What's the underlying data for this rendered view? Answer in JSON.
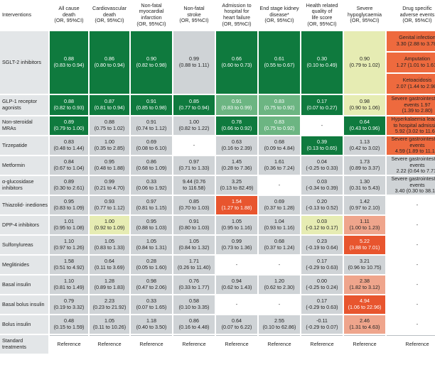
{
  "header": {
    "interventions": "Interventions",
    "cols": [
      {
        "l1": "All cause",
        "l2": "death",
        "l3": "(OR, 95%CI)"
      },
      {
        "l1": "Cardiovascular",
        "l2": "death",
        "l3": "(OR, 95%CI)"
      },
      {
        "l1": "Non-fatal myocardial",
        "l2": "infarction",
        "l3": "(OR, 95%CI)"
      },
      {
        "l1": "Non-fatal",
        "l2": "stroke",
        "l3": "(OR, 95%CI)"
      },
      {
        "l1": "Admission to hospital for",
        "l2": "heart failure",
        "l3": "(OR, 95%CI)"
      },
      {
        "l1": "End stage kidney",
        "l2": "disease*",
        "l3": "(OR, 95%CI)"
      },
      {
        "l1": "Health related quality of",
        "l2": "life score",
        "l3": "(OR, 95%CI)"
      },
      {
        "l1": "Severe",
        "l2": "hypoglycaemia",
        "l3": "(OR, 95%CI)"
      },
      {
        "l1": "Drug specific",
        "l2": "adverse events",
        "l3": "(OR, 95%CI)"
      }
    ]
  },
  "rows": {
    "sglt2": {
      "label": "SGLT-2 inhibitors",
      "acd": [
        "0.88",
        "(0.83 to 0.94)"
      ],
      "cvd": [
        "0.86",
        "(0.80 to 0.94)"
      ],
      "mi": [
        "0.90",
        "(0.82 to 0.98)"
      ],
      "st": [
        "0.99",
        "(0.88 to 1.11)"
      ],
      "hf": [
        "0.66",
        "(0.60 to 0.73)"
      ],
      "kd": [
        "0.61",
        "(0.55 to 0.67)"
      ],
      "ql": [
        "0.30",
        "(0.10 to 0.49)"
      ],
      "hy": [
        "0.90",
        "(0.79 to 1.02)"
      ],
      "ae": [
        [
          "Genital infection",
          "3.30 (2.88 to 3.78)"
        ],
        [
          "Amputation",
          "1.27 (1.01 to 1.61)"
        ],
        [
          "Ketoacidosis",
          "2.07 (1.44 to 2.98)"
        ]
      ]
    },
    "glp1": {
      "label": "GLP-1 receptor agonists",
      "acd": [
        "0.88",
        "(0.82 to 0.93)"
      ],
      "cvd": [
        "0.87",
        "(0.81 to 0.94)"
      ],
      "mi": [
        "0.91",
        "(0.85 to 0.98)"
      ],
      "st": [
        "0.85",
        "(0.77 to 0.94)"
      ],
      "hf": [
        "0.91",
        "(0.83 to 0.99)"
      ],
      "kd": [
        "0.83",
        "(0.75 to 0.92)"
      ],
      "ql": [
        "0.17",
        "(0.07 to 0.27)"
      ],
      "hy": [
        "0.98",
        "(0.90 to 1.06)"
      ],
      "ae": [
        "Severe gastrointestinal events 1.97",
        "(1.39 to 2.80)"
      ]
    },
    "nsmra": {
      "label": "Non-steroidal MRAs",
      "acd": [
        "0.89",
        "(0.79 to 1.00)"
      ],
      "cvd": [
        "0.88",
        "(0.75 to 1.02)"
      ],
      "mi": [
        "0.91",
        "(0.74 to 1.12)"
      ],
      "st": [
        "1.00",
        "(0.82 to 1.22)"
      ],
      "hf": [
        "0.78",
        "(0.66 to 0.92)"
      ],
      "kd": [
        "0.83",
        "(0.75 to 0.92)"
      ],
      "ql": "-",
      "hy": [
        "0.64",
        "(0.43 to 0.96)"
      ],
      "ae": [
        "Hyperkalaemia leading",
        "to hospital admission",
        "5.92 (3.02 to 11.62)"
      ]
    },
    "tirz": {
      "label": "Tirzepatide",
      "acd": [
        "0.83",
        "(0.48 to 1.44)"
      ],
      "cvd": [
        "1.00",
        "(0.35 to 2.85)"
      ],
      "mi": [
        "0.69",
        "(0.08 to 6.10)"
      ],
      "st": "-",
      "hf": [
        "0.63",
        "(0.16 to 2.39)"
      ],
      "kd": [
        "0.68",
        "(0.09 to 4.84)"
      ],
      "ql": [
        "0.39",
        "(0.13 to 0.65)"
      ],
      "hy": [
        "1.13",
        "(0.42 to 3.02)"
      ],
      "ae": [
        "Severe gastrointestinal",
        "events",
        "4.59 (1.89 to 11.14)"
      ]
    },
    "metf": {
      "label": "Metformin",
      "acd": [
        "0.84",
        "(0.67 to 1.04)"
      ],
      "cvd": [
        "0.95",
        "(0.48 to 1.88)"
      ],
      "mi": [
        "0.86",
        "(0.68 to 1.09)"
      ],
      "st": [
        "0.97",
        "(0.71 to 1.33)"
      ],
      "hf": [
        "1.45",
        "(0.28 to 7.36)"
      ],
      "kd": [
        "1.61",
        "(0.36 to 7.24)"
      ],
      "ql": [
        "0.04",
        "(-0.25 to 0.33)"
      ],
      "hy": [
        "1.73",
        "(0.89 to 3.37)"
      ],
      "ae": [
        "Severe gastrointestinal",
        "events",
        "2.22 (0.64 to 7.71)"
      ]
    },
    "agi": {
      "label": "α-glucosidase inhibitors",
      "acd": [
        "0.89",
        "(0.30 to 2.61)"
      ],
      "cvd": [
        "0.99",
        "(0.21 to 4.70)"
      ],
      "mi": [
        "0.33",
        "(0.06 to 1.92)"
      ],
      "st": [
        "9.44 (0.76",
        "to 116.58)"
      ],
      "hf": [
        "3.25",
        "(0.13 to 82.49)"
      ],
      "kd": "-",
      "ql": [
        "0.03",
        "(-0.34 to 0.39)"
      ],
      "hy": [
        "1.30",
        "(0.31 to 5.43)"
      ],
      "ae": [
        "Severe gastrointestinal",
        "events",
        "3.40 (0.30 to 38.15)"
      ]
    },
    "tzd": {
      "label": "Thiazolid- inediones",
      "acd": [
        "0.95",
        "(0.83 to 1.09)"
      ],
      "cvd": [
        "0.93",
        "(0.77 to 1.12)"
      ],
      "mi": [
        "0.97",
        "(0.81 to 1.15)"
      ],
      "st": [
        "0.85",
        "(0.70 to 1.03)"
      ],
      "hf": [
        "1.54",
        "(1.27 to 1.88)"
      ],
      "kd": [
        "0.69",
        "(0.37 to 1.28)"
      ],
      "ql": [
        "0.20",
        "(-0.13 to 0.52)"
      ],
      "hy": [
        "1.42",
        "(0.97 to 2.10)"
      ],
      "ae": "-"
    },
    "dpp4": {
      "label": "DPP-4 inhibitors",
      "acd": [
        "1.01",
        "(0.95 to 1.08)"
      ],
      "cvd": [
        "1.00",
        "(0.92 to 1.09)"
      ],
      "mi": [
        "0.95",
        "(0.88 to 1.03)"
      ],
      "st": [
        "0.91",
        "(0.80 to 1.03)"
      ],
      "hf": [
        "1.05",
        "(0.95 to 1.16)"
      ],
      "kd": [
        "1.04",
        "(0.93 to 1.16)"
      ],
      "ql": [
        "0.03",
        "(-0.12 to 0.17)"
      ],
      "hy": [
        "1.11",
        "(1.00 to 1.23)"
      ],
      "ae": "-"
    },
    "sulf": {
      "label": "Sulfonylureas",
      "acd": [
        "1.10",
        "(0.97 to 1.26)"
      ],
      "cvd": [
        "1.05",
        "(0.83 to 1.33)"
      ],
      "mi": [
        "1.05",
        "(0.84 to 1.31)"
      ],
      "st": [
        "1.05",
        "(0.84 to 1.32)"
      ],
      "hf": [
        "0.99",
        "(0.73 to 1.36)"
      ],
      "kd": [
        "0.68",
        "(0.37 to 1.24)"
      ],
      "ql": [
        "0.23",
        "(-0.19 to 0.64)"
      ],
      "hy": [
        "5.22",
        "(3.88 to 7.01)"
      ],
      "ae": "-"
    },
    "megl": {
      "label": "Meglitinides",
      "acd": [
        "1.58",
        "(0.51 to 4.92)"
      ],
      "cvd": [
        "0.64",
        "(0.11 to 3.69)"
      ],
      "mi": [
        "0.28",
        "(0.05 to 1.60)"
      ],
      "st": [
        "1.71",
        "(0.26 to 11.40)"
      ],
      "hf": "-",
      "kd": "-",
      "ql": [
        "0.17",
        "(-0.29 to 0.63)"
      ],
      "hy": [
        "3.21",
        "(0.96 to 10.75)"
      ],
      "ae": "-"
    },
    "basal": {
      "label": "Basal insulin",
      "acd": [
        "1.10",
        "(0.81 to 1.49)"
      ],
      "cvd": [
        "1.28",
        "(0.89 to 1.83)"
      ],
      "mi": [
        "0.98",
        "(0.47 to 2.06)"
      ],
      "st": [
        "0.76",
        "(0.33 to 1.77)"
      ],
      "hf": [
        "0.94",
        "(0.62 to 1.43)"
      ],
      "kd": [
        "1.20",
        "(0.62 to 2.30)"
      ],
      "ql": [
        "0.00",
        "(-0.25 to 0.24)"
      ],
      "hy": [
        "2.38",
        "(1.82 to 3.12)"
      ],
      "ae": "-"
    },
    "bbolus": {
      "label": "Basal bolus insulin",
      "acd": [
        "0.79",
        "(0.19 to 3.32)"
      ],
      "cvd": [
        "2.23",
        "(0.23 to 21.92)"
      ],
      "mi": [
        "0.33",
        "(0.07 to 1.65)"
      ],
      "st": [
        "0.58",
        "(0.10 to 3.35)"
      ],
      "hf": "-",
      "kd": "-",
      "ql": [
        "0.17",
        "(-0.29 to 0.63)"
      ],
      "hy": [
        "4.94",
        "(1.06 to 22.96)"
      ],
      "ae": "-"
    },
    "bolus": {
      "label": "Bolus insulin",
      "acd": [
        "0.48",
        "(0.15 to 1.59)"
      ],
      "cvd": [
        "1.05",
        "(0.11 to 10.26)"
      ],
      "mi": [
        "1.18",
        "(0.40 to 3.50)"
      ],
      "st": [
        "0.86",
        "(0.16 to 4.48)"
      ],
      "hf": [
        "0.64",
        "(0.07 to 6.22)"
      ],
      "kd": [
        "2.55",
        "(0.10 to 62.86)"
      ],
      "ql": [
        "-0.11",
        "(-0.29 to 0.07)"
      ],
      "hy": [
        "2.46",
        "(1.31 to 4.63)"
      ],
      "ae": "-"
    },
    "std": {
      "label": "Standard treatments",
      "ref": "Reference"
    }
  },
  "colors": {
    "dark_green": "#0f7a3e",
    "mid_green": "#6cb582",
    "light_yellow": "#e6ecb3",
    "grey": "#cfd3d6",
    "red": "#e8552e",
    "pink": "#efa58c",
    "orange": "#ee6a3e"
  }
}
